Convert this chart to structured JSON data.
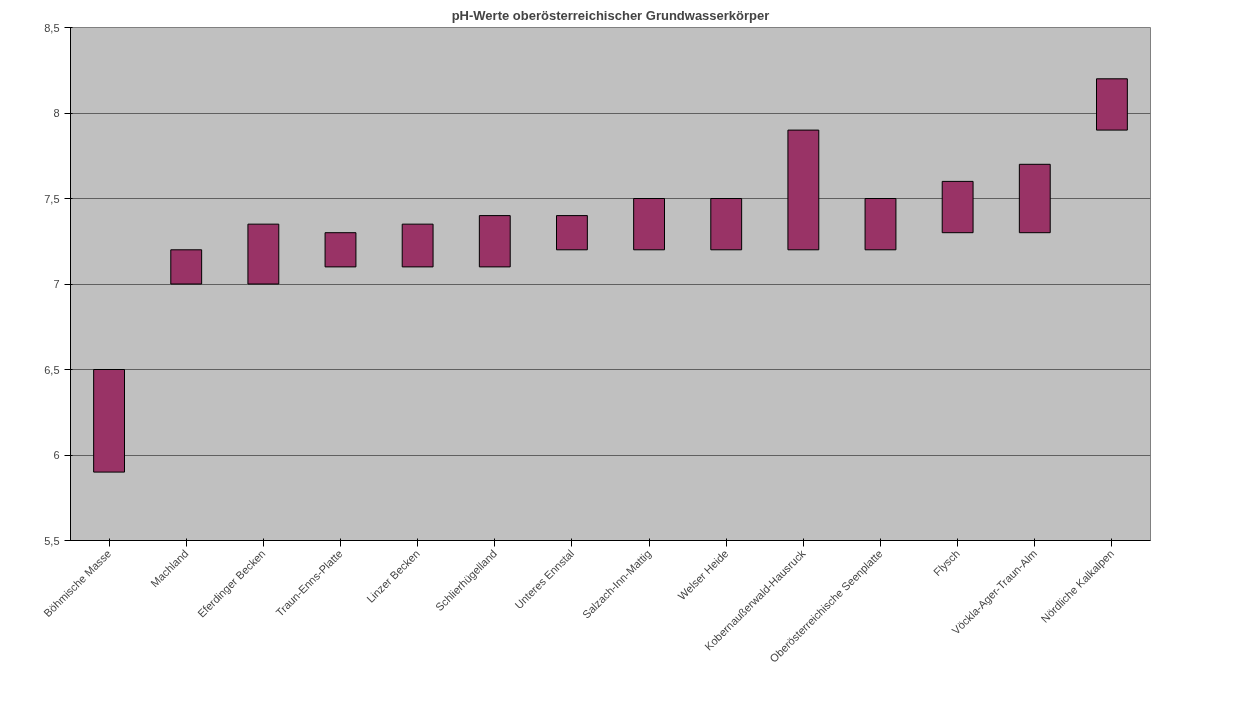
{
  "chart_data": {
    "type": "bar",
    "title": "pH-Werte oberösterreichischer Grundwasserkörper",
    "categories": [
      "Böhmische Masse",
      "Machland",
      "Eferdinger Becken",
      "Traun-Enns-Platte",
      "Linzer Becken",
      "Schlierhügelland",
      "Unteres Ennstal",
      "Salzach-Inn-Mattig",
      "Welser Heide",
      "Kobernaußerwald-Hausruck",
      "Oberösterreichische Seenplatte",
      "Flysch",
      "Vöckla-Ager-Traun-Alm",
      "Nördliche Kalkalpen"
    ],
    "base": [
      5.9,
      7.0,
      7.0,
      7.1,
      7.1,
      7.1,
      7.2,
      7.2,
      7.2,
      7.2,
      7.2,
      7.3,
      7.3,
      7.9
    ],
    "values": [
      0.6,
      0.2,
      0.35,
      0.2,
      0.25,
      0.3,
      0.2,
      0.3,
      0.3,
      0.7,
      0.3,
      0.3,
      0.4,
      0.3
    ],
    "color": "#993366",
    "ylim": [
      5.5,
      8.5
    ],
    "yticks": [
      {
        "value": 5.5,
        "label": "5,5"
      },
      6,
      {
        "value": 6.5,
        "label": "6,5"
      },
      7,
      {
        "value": 7.5,
        "label": "7,5"
      },
      8,
      {
        "value": 8.5,
        "label": "8,5"
      }
    ],
    "grid": "y"
  }
}
